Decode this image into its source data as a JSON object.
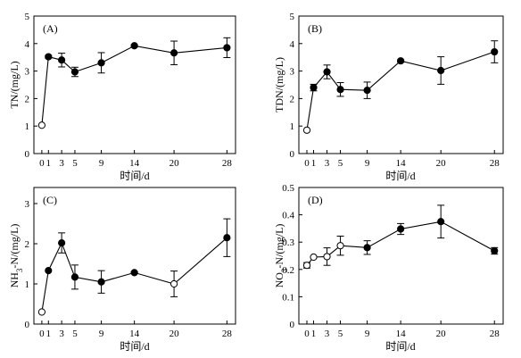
{
  "chart_data": [
    {
      "type": "line",
      "panel_label": "(A)",
      "xlabel": "时间/d",
      "ylabel": "TN/(mg/L)",
      "ylim": [
        0,
        5
      ],
      "yticks": [
        "0",
        "1",
        "2",
        "3",
        "4",
        "5"
      ],
      "xticks": [
        "0",
        "1",
        "3",
        "5",
        "9",
        "14",
        "20",
        "28"
      ],
      "points": [
        {
          "x": 0,
          "y": 1.03,
          "err": 0.0,
          "open": true
        },
        {
          "x": 1,
          "y": 3.52,
          "err": 0.05,
          "open": false
        },
        {
          "x": 3,
          "y": 3.4,
          "err": 0.25,
          "open": false
        },
        {
          "x": 5,
          "y": 2.97,
          "err": 0.17,
          "open": false
        },
        {
          "x": 9,
          "y": 3.3,
          "err": 0.37,
          "open": false
        },
        {
          "x": 14,
          "y": 3.92,
          "err": 0.04,
          "open": false
        },
        {
          "x": 20,
          "y": 3.66,
          "err": 0.43,
          "open": false
        },
        {
          "x": 28,
          "y": 3.85,
          "err": 0.36,
          "open": false
        }
      ]
    },
    {
      "type": "line",
      "panel_label": "(B)",
      "xlabel": "时间/d",
      "ylabel": "TDN/(mg/L)",
      "ylim": [
        0,
        5
      ],
      "yticks": [
        "0",
        "1",
        "2",
        "3",
        "4",
        "5"
      ],
      "xticks": [
        "0",
        "1",
        "3",
        "5",
        "9",
        "14",
        "20",
        "28"
      ],
      "points": [
        {
          "x": 0,
          "y": 0.85,
          "err": 0.0,
          "open": true
        },
        {
          "x": 1,
          "y": 2.4,
          "err": 0.12,
          "open": false
        },
        {
          "x": 3,
          "y": 2.97,
          "err": 0.25,
          "open": false
        },
        {
          "x": 5,
          "y": 2.33,
          "err": 0.25,
          "open": false
        },
        {
          "x": 9,
          "y": 2.3,
          "err": 0.3,
          "open": false
        },
        {
          "x": 14,
          "y": 3.37,
          "err": 0.04,
          "open": false
        },
        {
          "x": 20,
          "y": 3.02,
          "err": 0.5,
          "open": false
        },
        {
          "x": 28,
          "y": 3.7,
          "err": 0.4,
          "open": false
        }
      ]
    },
    {
      "type": "line",
      "panel_label": "(C)",
      "xlabel": "时间/d",
      "ylabel_main": "NH",
      "ylabel_sub": "3",
      "ylabel_rest": "-N/(mg/L)",
      "ylim": [
        0,
        3.4
      ],
      "yticks": [
        "0",
        "1",
        "2",
        "3"
      ],
      "xticks": [
        "0",
        "1",
        "3",
        "5",
        "9",
        "14",
        "20",
        "28"
      ],
      "points": [
        {
          "x": 0,
          "y": 0.3,
          "err": 0.0,
          "open": true
        },
        {
          "x": 1,
          "y": 1.33,
          "err": 0.0,
          "open": false
        },
        {
          "x": 3,
          "y": 2.02,
          "err": 0.25,
          "open": false
        },
        {
          "x": 5,
          "y": 1.17,
          "err": 0.3,
          "open": false
        },
        {
          "x": 9,
          "y": 1.05,
          "err": 0.28,
          "open": false
        },
        {
          "x": 14,
          "y": 1.28,
          "err": 0.02,
          "open": false
        },
        {
          "x": 20,
          "y": 1.0,
          "err": 0.32,
          "open": true
        },
        {
          "x": 28,
          "y": 2.15,
          "err": 0.47,
          "open": false
        }
      ]
    },
    {
      "type": "line",
      "panel_label": "(D)",
      "xlabel": "时间/d",
      "ylabel_main": "NO",
      "ylabel_sub": "3",
      "ylabel_rest": "-N/(mg/L)",
      "ylim": [
        0,
        0.5
      ],
      "yticks": [
        "0",
        "0.1",
        "0.2",
        "0.3",
        "0.4",
        "0.5"
      ],
      "xticks": [
        "0",
        "1",
        "3",
        "5",
        "9",
        "14",
        "20",
        "28"
      ],
      "points": [
        {
          "x": 0,
          "y": 0.215,
          "err": 0.01,
          "open": true
        },
        {
          "x": 1,
          "y": 0.245,
          "err": 0.0,
          "open": true
        },
        {
          "x": 3,
          "y": 0.247,
          "err": 0.032,
          "open": true
        },
        {
          "x": 5,
          "y": 0.287,
          "err": 0.035,
          "open": true
        },
        {
          "x": 9,
          "y": 0.28,
          "err": 0.025,
          "open": false
        },
        {
          "x": 14,
          "y": 0.348,
          "err": 0.02,
          "open": false
        },
        {
          "x": 20,
          "y": 0.375,
          "err": 0.06,
          "open": false
        },
        {
          "x": 28,
          "y": 0.268,
          "err": 0.012,
          "open": false
        }
      ]
    }
  ]
}
